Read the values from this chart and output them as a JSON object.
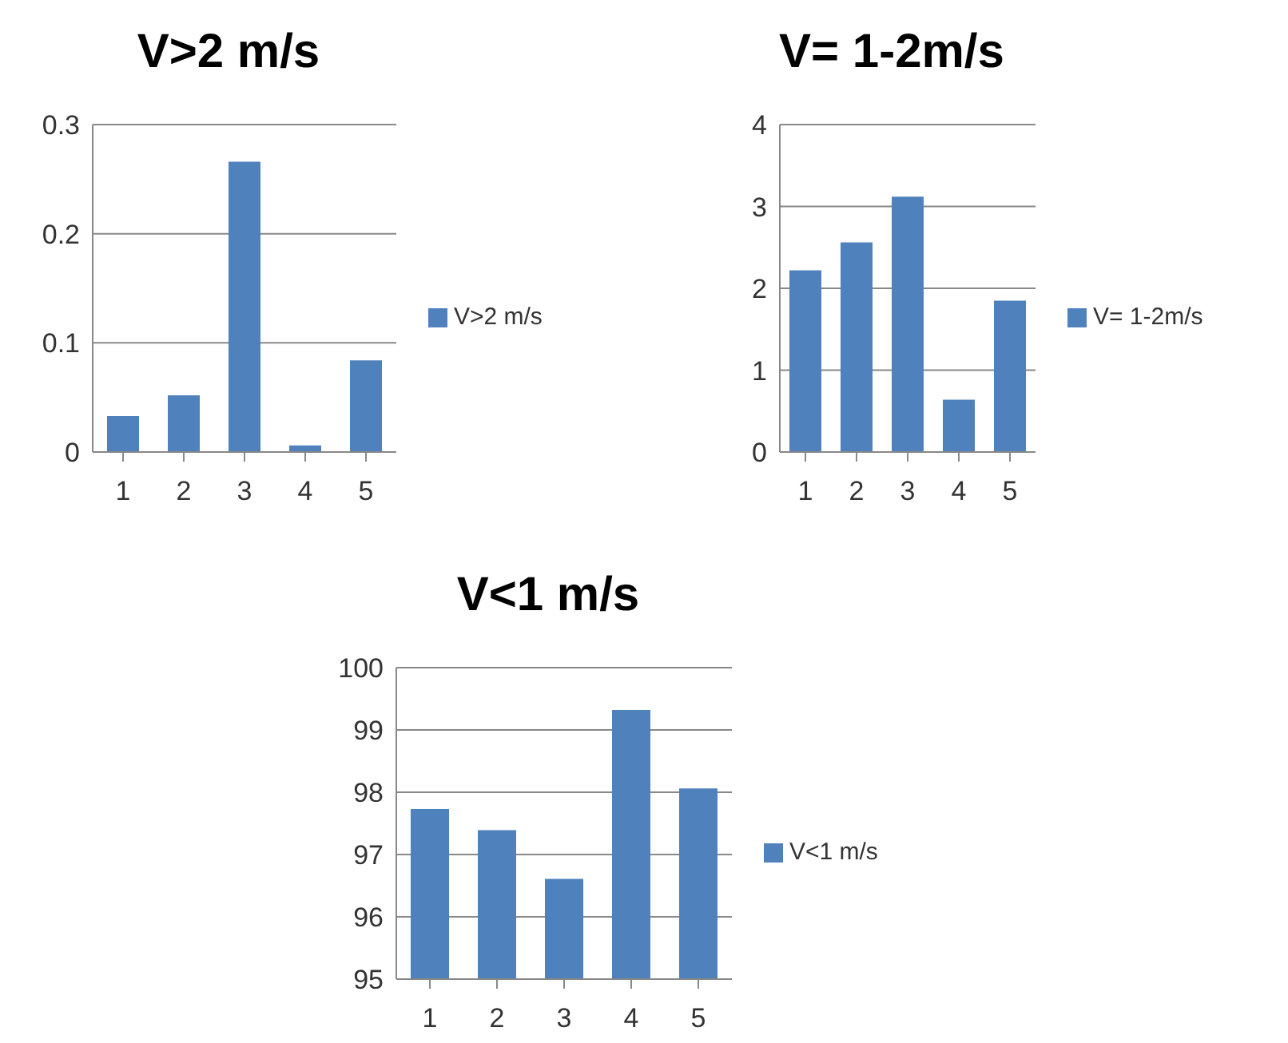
{
  "chart_data": [
    {
      "type": "bar",
      "title": "V>2 m/s",
      "categories": [
        "1",
        "2",
        "3",
        "4",
        "5"
      ],
      "series": [
        {
          "name": "V>2 m/s",
          "color": "#4f81bd",
          "values": [
            0.033,
            0.052,
            0.266,
            0.006,
            0.084
          ]
        }
      ],
      "ylim": [
        0,
        0.3
      ],
      "yticks": [
        0,
        0.1,
        0.2,
        0.3
      ],
      "grid": "y",
      "legend": "right"
    },
    {
      "type": "bar",
      "title": "V= 1-2m/s",
      "categories": [
        "1",
        "2",
        "3",
        "4",
        "5"
      ],
      "series": [
        {
          "name": "V= 1-2m/s",
          "color": "#4f81bd",
          "values": [
            2.22,
            2.56,
            3.12,
            0.64,
            1.85
          ]
        }
      ],
      "ylim": [
        0,
        4
      ],
      "yticks": [
        0,
        1,
        2,
        3,
        4
      ],
      "grid": "y",
      "legend": "right"
    },
    {
      "type": "bar",
      "title": "V<1 m/s",
      "categories": [
        "1",
        "2",
        "3",
        "4",
        "5"
      ],
      "series": [
        {
          "name": "V<1 m/s",
          "color": "#4f81bd",
          "values": [
            97.73,
            97.39,
            96.61,
            99.32,
            98.06
          ]
        }
      ],
      "ylim": [
        95,
        100
      ],
      "yticks": [
        95,
        96,
        97,
        98,
        99,
        100
      ],
      "grid": "y",
      "legend": "right"
    }
  ]
}
